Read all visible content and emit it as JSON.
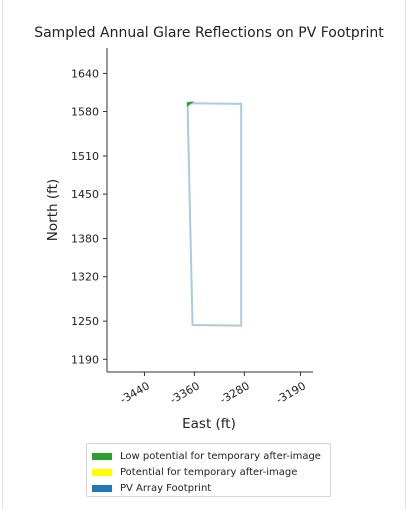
{
  "chart_data": {
    "type": "scatter",
    "title": "Sampled Annual Glare Reflections on PV Footprint",
    "xlabel": "East (ft)",
    "ylabel": "North (ft)",
    "xlim": [
      -3500,
      -3170
    ],
    "ylim": [
      1170,
      1680
    ],
    "xticks": [
      -3440,
      -3360,
      -3280,
      -3190
    ],
    "xtick_labels": [
      "-3440",
      "-3360",
      "-3280",
      "-3190"
    ],
    "yticks": [
      1190,
      1250,
      1320,
      1380,
      1450,
      1510,
      1580,
      1640
    ],
    "ytick_labels": [
      "1190",
      "1250",
      "1320",
      "1380",
      "1450",
      "1510",
      "1580",
      "1640"
    ],
    "grid": false,
    "legend_position": "bottom-outside",
    "series": [
      {
        "name": "Low potential for temporary after-image",
        "color": "#2ca02c",
        "kind": "glare-points",
        "points": [
          [
            -3371,
            1594
          ],
          [
            -3363,
            1595
          ],
          [
            -3371,
            1589
          ]
        ]
      },
      {
        "name": "Potential for temporary after-image",
        "color": "#ffff00",
        "kind": "glare-points",
        "points": []
      },
      {
        "name": "PV Array Footprint",
        "color": "#1f77b4",
        "outline_color": "#a8cce0",
        "kind": "polygon",
        "points": [
          [
            -3371,
            1593
          ],
          [
            -3285,
            1592
          ],
          [
            -3285,
            1243
          ],
          [
            -3363,
            1244
          ]
        ]
      }
    ]
  }
}
